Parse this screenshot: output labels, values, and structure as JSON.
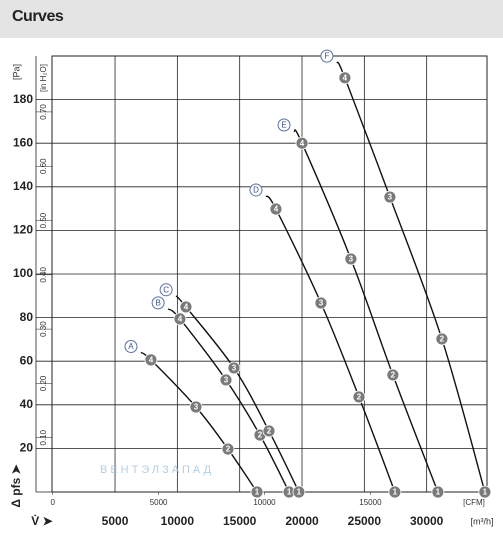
{
  "header": {
    "title": "Curves"
  },
  "chart_data": {
    "type": "line",
    "xlabel": "[m³/h]",
    "ylabel": "[Pa]",
    "x2label": "[CFM]",
    "y2label": "[in H₂O]",
    "ylabel_symbol": "Δ pfs ➤",
    "xlabel_symbol": "V̇ ➤",
    "watermark": "ВЕНТЭЛЗАПАД",
    "xlim": [
      0,
      35000
    ],
    "xticks": [
      5000,
      10000,
      15000,
      20000,
      25000,
      30000
    ],
    "ylim": [
      0,
      200
    ],
    "yticks": [
      20,
      40,
      60,
      80,
      100,
      120,
      140,
      160,
      180
    ],
    "x2lim": [
      0,
      20600
    ],
    "x2ticks": [
      0,
      5000,
      10000,
      15000
    ],
    "y2lim": [
      0,
      0.803
    ],
    "y2ticks": [
      {
        "value": 0.1,
        "label": "0.10"
      },
      {
        "value": 0.2,
        "label": "0.20"
      },
      {
        "value": 0.3,
        "label": "0.30"
      },
      {
        "value": 0.4,
        "label": "0.40"
      },
      {
        "value": 0.5,
        "label": "0.50"
      },
      {
        "value": 0.6,
        "label": "0.60"
      },
      {
        "value": 0.7,
        "label": "0.70"
      }
    ],
    "grid": true,
    "color": "#111111",
    "series": [
      {
        "name": "A",
        "x": [
          7080,
          7880,
          11490,
          14060,
          16390
        ],
        "values": [
          64,
          60.6,
          39,
          19.7,
          0
        ],
        "point_labels": [
          null,
          "4",
          "3",
          "2",
          "1"
        ]
      },
      {
        "name": "B",
        "x": [
          9260,
          10210,
          13900,
          16630,
          18960
        ],
        "values": [
          84,
          79.4,
          51.4,
          26.1,
          0
        ],
        "point_labels": [
          null,
          "4",
          "3",
          "2",
          "1"
        ]
      },
      {
        "name": "C",
        "x": [
          9900,
          10690,
          14540,
          17350,
          19750
        ],
        "values": [
          90,
          84.9,
          56.9,
          28,
          0
        ],
        "point_labels": [
          null,
          "4",
          "3",
          "2",
          "1"
        ]
      },
      {
        "name": "D",
        "x": [
          17110,
          17910,
          21520,
          24570,
          27450
        ],
        "values": [
          135.8,
          129.8,
          86.7,
          43.6,
          0
        ],
        "point_labels": [
          null,
          "4",
          "3",
          "2",
          "1"
        ]
      },
      {
        "name": "E",
        "x": [
          19360,
          20000,
          23920,
          27290,
          30900
        ],
        "values": [
          165.6,
          160,
          106.9,
          53.7,
          0
        ],
        "point_labels": [
          null,
          "4",
          "3",
          "2",
          "1"
        ]
      },
      {
        "name": "F",
        "x": [
          22800,
          23440,
          27050,
          31220,
          34670
        ],
        "values": [
          197.2,
          190,
          135.3,
          70.2,
          0
        ],
        "point_labels": [
          null,
          "4",
          "3",
          "2",
          "1"
        ]
      }
    ]
  }
}
